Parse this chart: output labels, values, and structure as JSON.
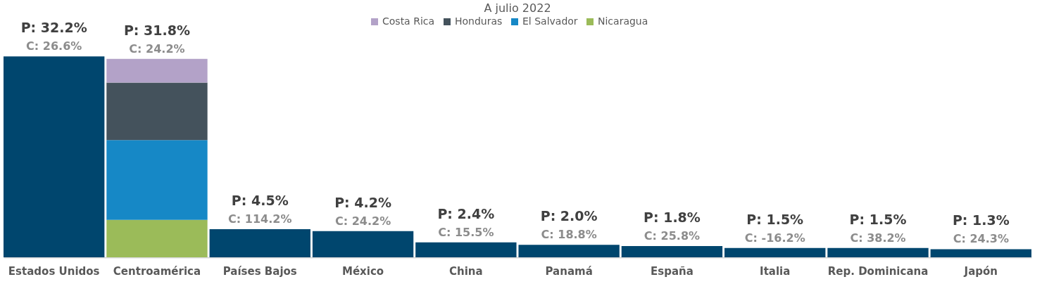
{
  "chart_data": {
    "type": "bar",
    "title": "A julio 2022",
    "categories": [
      "Estados Unidos",
      "Centroamérica",
      "Países Bajos",
      "México",
      "China",
      "Panamá",
      "España",
      "Italia",
      "Rep. Dominicana",
      "Japón"
    ],
    "stacked": true,
    "series": [
      {
        "color": "#00466e",
        "values": [
          32.2,
          null,
          4.5,
          4.2,
          2.4,
          2.0,
          1.8,
          1.5,
          1.5,
          1.3
        ],
        "value_labels": [
          "P: 32.2%",
          null,
          "P: 4.5%",
          "P: 4.2%",
          "P: 2.4%",
          "P: 2.0%",
          "P: 1.8%",
          "P: 1.5%",
          "P: 1.5%",
          "P: 1.3%"
        ]
      },
      {
        "name": "Nicaragua",
        "color": "#9bbb59",
        "values": [
          null,
          6.0,
          null,
          null,
          null,
          null,
          null,
          null,
          null,
          null
        ]
      },
      {
        "name": "El Salvador",
        "color": "#1688c6",
        "values": [
          null,
          12.8,
          null,
          null,
          null,
          null,
          null,
          null,
          null,
          null
        ]
      },
      {
        "name": "Honduras",
        "color": "#44525c",
        "values": [
          null,
          9.2,
          null,
          null,
          null,
          null,
          null,
          null,
          null,
          null
        ]
      },
      {
        "name": "Costa Rica",
        "color": "#b3a2c8",
        "values": [
          null,
          3.8,
          null,
          null,
          null,
          null,
          null,
          null,
          null,
          null
        ]
      }
    ],
    "totals": [
      null,
      "P: 31.8%",
      null,
      null,
      null,
      null,
      null,
      null,
      null,
      null
    ],
    "annotations": [
      {
        "text": "C: 26.6%",
        "x": "Estados Unidos",
        "y": 32.2
      },
      {
        "text": "C: 24.2%",
        "x": "Centroamérica",
        "y": 31.8
      },
      {
        "text": "C: 114.2%",
        "x": "Países Bajos",
        "y": 4.5
      },
      {
        "text": "C: 24.2%",
        "x": "México",
        "y": 4.2
      },
      {
        "text": "C: 15.5%",
        "x": "China",
        "y": 2.4
      },
      {
        "text": "C: 18.8%",
        "x": "Panamá",
        "y": 2.0
      },
      {
        "text": "C: 25.8%",
        "x": "España",
        "y": 1.8
      },
      {
        "text": "C: -16.2%",
        "x": "Italia",
        "y": 1.5
      },
      {
        "text": "C: 38.2%",
        "x": "Rep. Dominicana",
        "y": 1.5
      },
      {
        "text": "C: 24.3%",
        "x": "Japón",
        "y": 1.3
      }
    ],
    "legend": "top",
    "grid": false
  }
}
